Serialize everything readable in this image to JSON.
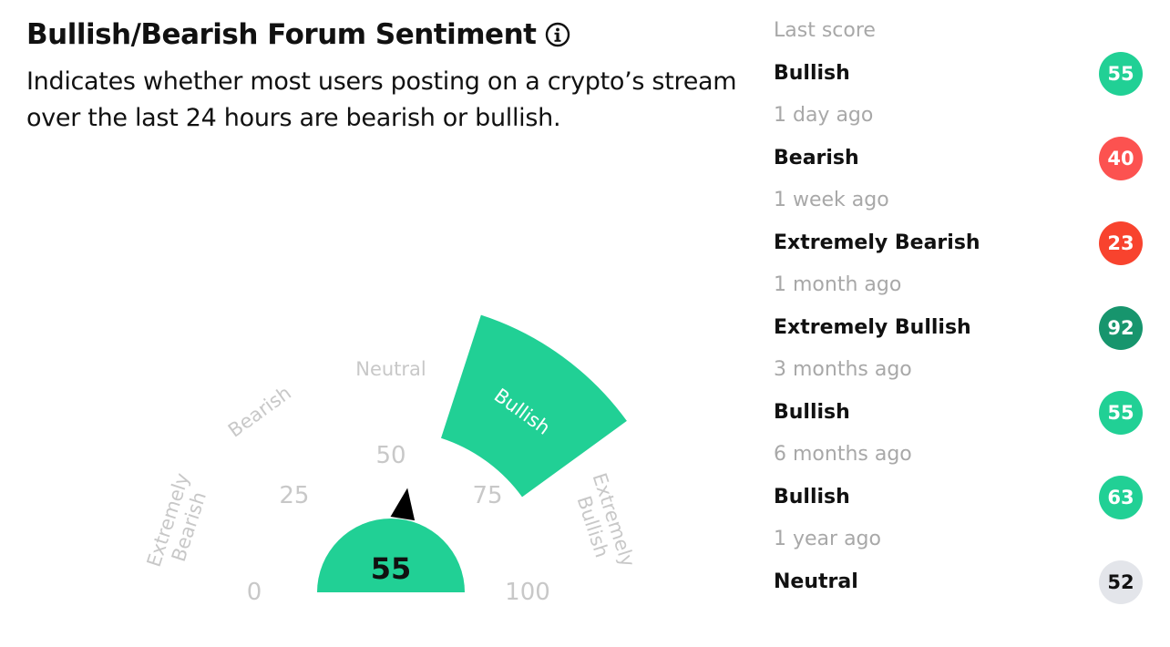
{
  "header": {
    "title": "Bullish/Bearish Forum Sentiment",
    "info_icon": "info-icon",
    "subtitle": "Indicates whether most users posting on a crypto’s stream over the last 24 hours are bearish or bullish."
  },
  "gauge": {
    "value": 55,
    "value_label": "55",
    "active_zone": "Bullish",
    "min": 0,
    "max": 100,
    "ticks": [
      "0",
      "25",
      "50",
      "75",
      "100"
    ],
    "zones": [
      {
        "name": "Extremely Bearish",
        "lines": [
          "Extremely",
          "Bearish"
        ]
      },
      {
        "name": "Bearish",
        "lines": [
          "Bearish"
        ]
      },
      {
        "name": "Neutral",
        "lines": [
          "Neutral"
        ]
      },
      {
        "name": "Bullish",
        "lines": [
          "Bullish"
        ]
      },
      {
        "name": "Extremely Bullish",
        "lines": [
          "Extremely",
          "Bullish"
        ]
      }
    ],
    "colors": {
      "active": "#21d095",
      "inactive_text": "#c8c8c8",
      "needle": "#000000",
      "active_text": "#ffffff"
    }
  },
  "history": [
    {
      "period": "Last score",
      "label": "Bullish",
      "score": "55",
      "color": "#21d095"
    },
    {
      "period": "1 day ago",
      "label": "Bearish",
      "score": "40",
      "color": "#fc5250"
    },
    {
      "period": "1 week ago",
      "label": "Extremely Bearish",
      "score": "23",
      "color": "#f8432e"
    },
    {
      "period": "1 month ago",
      "label": "Extremely Bullish",
      "score": "92",
      "color": "#17956d"
    },
    {
      "period": "3 months ago",
      "label": "Bullish",
      "score": "55",
      "color": "#21d095"
    },
    {
      "period": "6 months ago",
      "label": "Bullish",
      "score": "63",
      "color": "#21d095"
    },
    {
      "period": "1 year ago",
      "label": "Neutral",
      "score": "52",
      "color": "#e3e5ea"
    }
  ]
}
